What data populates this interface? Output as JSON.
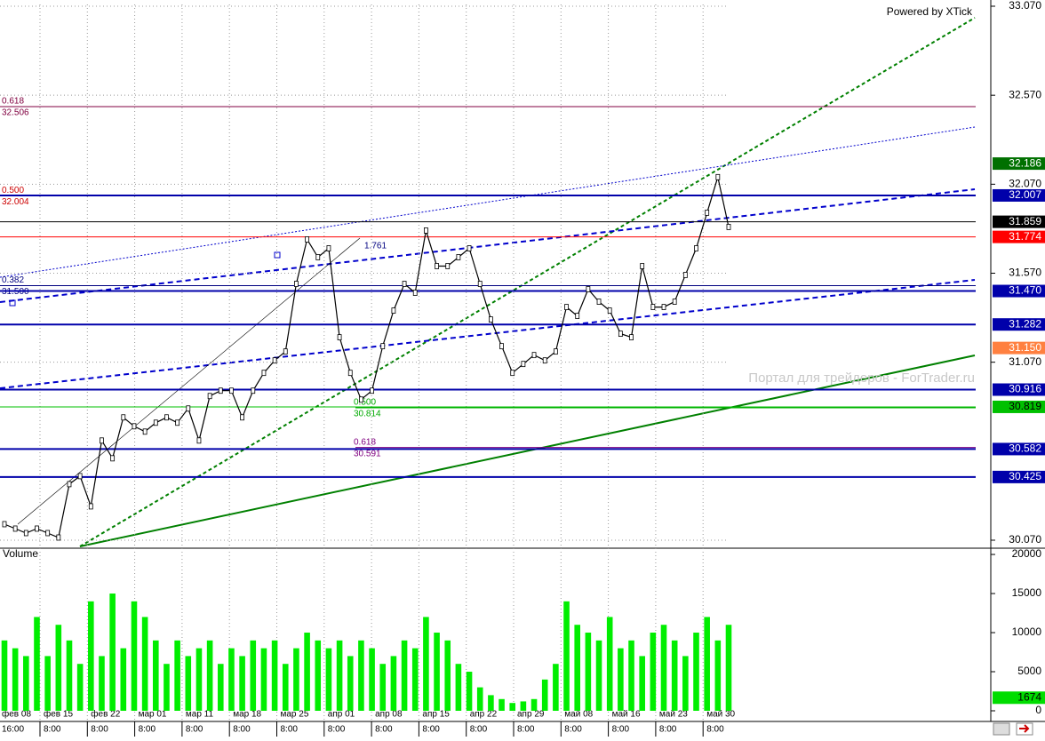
{
  "chart_data": [
    {
      "type": "line",
      "credit": "Powered by XTick",
      "watermark": "Портал для трейдеров - ForTrader.ru",
      "annotation": "1.761",
      "ylim": [
        30.025,
        33.105
      ],
      "yticks": [
        {
          "value": 30.07,
          "label": "30.070"
        },
        {
          "value": 31.07,
          "label": "31.070"
        },
        {
          "value": 31.57,
          "label": "31.570"
        },
        {
          "value": 32.07,
          "label": "32.070"
        },
        {
          "value": 32.57,
          "label": "32.570"
        },
        {
          "value": 33.07,
          "label": "33.070"
        }
      ],
      "grid": true,
      "color": "#000000",
      "values": [
        30.16,
        30.135,
        30.11,
        30.135,
        30.11,
        30.085,
        30.385,
        30.43,
        30.26,
        30.63,
        30.53,
        30.76,
        30.71,
        30.68,
        30.73,
        30.76,
        30.73,
        30.81,
        30.63,
        30.88,
        30.91,
        30.91,
        30.76,
        30.91,
        31.01,
        31.08,
        31.13,
        31.51,
        31.76,
        31.66,
        31.71,
        31.21,
        31.01,
        30.86,
        30.91,
        31.16,
        31.36,
        31.51,
        31.46,
        31.81,
        31.61,
        31.61,
        31.66,
        31.71,
        31.51,
        31.31,
        31.16,
        31.01,
        31.06,
        31.11,
        31.08,
        31.13,
        31.38,
        31.33,
        31.48,
        31.41,
        31.36,
        31.23,
        31.21,
        31.61,
        31.38,
        31.38,
        31.41,
        31.56,
        31.71,
        31.91,
        32.11,
        31.83
      ],
      "levels": [
        {
          "value": 32.186,
          "label": "32.186",
          "color": "#007000",
          "text_color": "#ffffff",
          "line": false
        },
        {
          "value": 32.007,
          "label": "32.007",
          "color": "#0000aa",
          "text_color": "#ffffff",
          "line": true
        },
        {
          "value": 31.859,
          "label": "31.859",
          "color": "#000000",
          "text_color": "#ffffff",
          "line": true
        },
        {
          "value": 31.774,
          "label": "31.774",
          "color": "#ff0000",
          "text_color": "#ffffff",
          "line": true
        },
        {
          "value": 31.47,
          "label": "31.470",
          "color": "#0000aa",
          "text_color": "#ffffff",
          "line": true
        },
        {
          "value": 31.282,
          "label": "31.282",
          "color": "#0000aa",
          "text_color": "#ffffff",
          "line": true
        },
        {
          "value": 31.15,
          "label": "31.150",
          "color": "#ff8040",
          "text_color": "#ffffff",
          "line": false
        },
        {
          "value": 30.916,
          "label": "30.916",
          "color": "#0000aa",
          "text_color": "#ffffff",
          "line": true
        },
        {
          "value": 30.819,
          "label": "30.819",
          "color": "#00c000",
          "text_color": "#000000",
          "line": true
        },
        {
          "value": 30.582,
          "label": "30.582",
          "color": "#0000aa",
          "text_color": "#ffffff",
          "line": true
        },
        {
          "value": 30.425,
          "label": "30.425",
          "color": "#0000aa",
          "text_color": "#ffffff",
          "line": true
        }
      ],
      "fib_left": [
        {
          "ratio": "0.618",
          "price": {
            "value": 32.506,
            "label": "32.506"
          },
          "color": "#800040"
        },
        {
          "ratio": "0.500",
          "price": {
            "value": 32.004,
            "label": "32.004"
          },
          "color": "#cc0000"
        },
        {
          "ratio": "0.382",
          "price": {
            "value": 31.5,
            "label": "31.500"
          },
          "color": "#000080"
        }
      ],
      "fib_mid": [
        {
          "ratio": "0.500",
          "price": {
            "value": 30.814,
            "label": "30.814"
          },
          "color": "#00aa00"
        },
        {
          "ratio": "0.618",
          "price": {
            "value": 30.591,
            "label": "30.591"
          },
          "color": "#800080"
        }
      ]
    },
    {
      "type": "bar",
      "title": "Volume",
      "ylim": [
        0,
        20800
      ],
      "yticks": [
        0,
        5000,
        10000,
        15000,
        20000
      ],
      "color": "#00ee00",
      "current": 1674,
      "values": [
        9000,
        8000,
        7000,
        12000,
        7000,
        11000,
        9000,
        6000,
        14000,
        7000,
        15000,
        8000,
        14000,
        12000,
        9000,
        6000,
        9000,
        7000,
        8000,
        9000,
        6000,
        8000,
        7000,
        9000,
        8000,
        9000,
        6000,
        8000,
        10000,
        9000,
        8000,
        9000,
        7000,
        9000,
        8000,
        6000,
        7000,
        9000,
        8000,
        12000,
        10000,
        9000,
        6000,
        5000,
        3000,
        2000,
        1500,
        1000,
        1200,
        1500,
        4000,
        6000,
        14000,
        11000,
        10000,
        9000,
        12000,
        8000,
        9000,
        7000,
        10000,
        11000,
        9000,
        7000,
        10000,
        12000,
        9000,
        11000
      ]
    },
    {
      "type": "axis",
      "dates": [
        "фев 08",
        "фев 15",
        "фев 22",
        "мар 01",
        "мар 11",
        "мар 18",
        "мар 25",
        "апр 01",
        "апр 08",
        "апр 15",
        "апр 22",
        "апр 29",
        "май 08",
        "май 16",
        "май 23",
        "май 30"
      ],
      "times": [
        "16:00",
        "8:00",
        "8:00",
        "8:00",
        "8:00",
        "8:00",
        "8:00",
        "8:00",
        "8:00",
        "8:00",
        "8:00",
        "8:00",
        "8:00",
        "8:00",
        "8:00",
        "8:00"
      ]
    }
  ]
}
